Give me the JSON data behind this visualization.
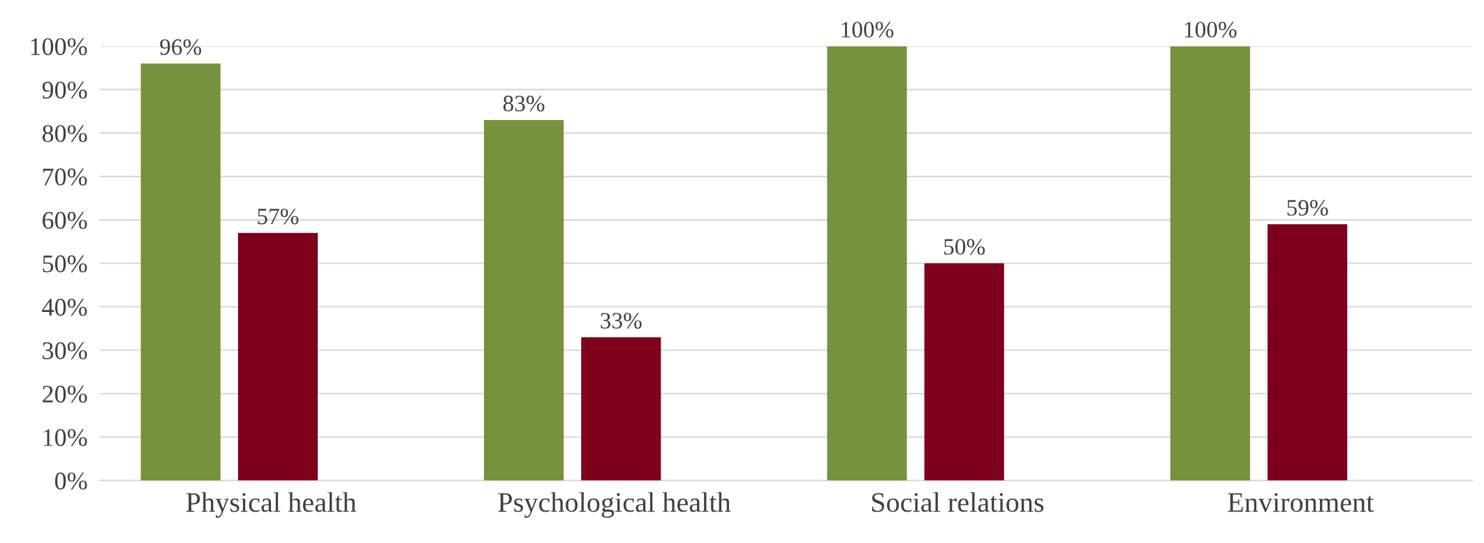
{
  "chart_data": {
    "type": "bar",
    "categories": [
      "Physical health",
      "Psychological health",
      "Social relations",
      "Environment"
    ],
    "series": [
      {
        "color": "#76923c",
        "values": [
          96,
          83,
          100,
          100
        ],
        "value_labels": [
          "96%",
          "83%",
          "100%",
          "100%"
        ]
      },
      {
        "color": "#7f001d",
        "values": [
          57,
          33,
          50,
          59
        ],
        "value_labels": [
          "57%",
          "33%",
          "50%",
          "59%"
        ]
      }
    ],
    "ylim": [
      0,
      100
    ],
    "yticks": [
      {
        "value": 0,
        "label": "0%"
      },
      {
        "value": 10,
        "label": "10%"
      },
      {
        "value": 20,
        "label": "20%"
      },
      {
        "value": 30,
        "label": "30%"
      },
      {
        "value": 40,
        "label": "40%"
      },
      {
        "value": 50,
        "label": "50%"
      },
      {
        "value": 60,
        "label": "60%"
      },
      {
        "value": 70,
        "label": "70%"
      },
      {
        "value": 80,
        "label": "80%"
      },
      {
        "value": 90,
        "label": "90%"
      },
      {
        "value": 100,
        "label": "100%"
      }
    ],
    "grid": "y",
    "legend": false
  }
}
